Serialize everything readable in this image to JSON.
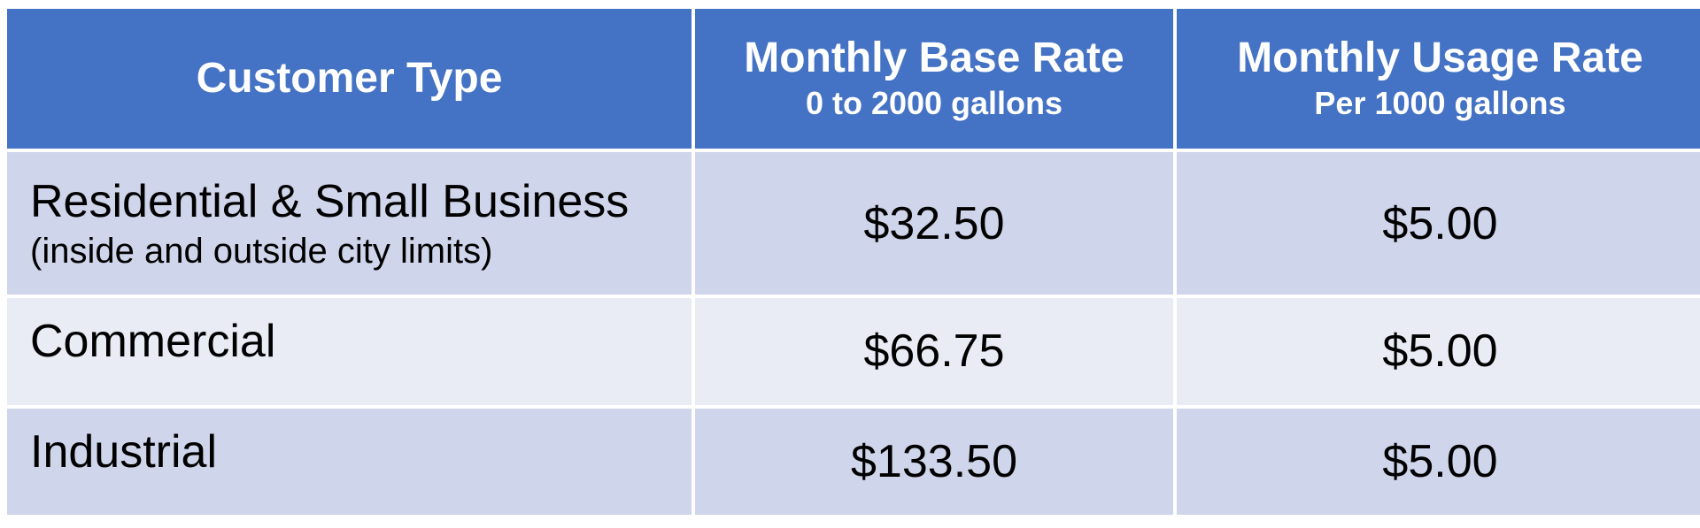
{
  "table": {
    "headers": [
      {
        "title": "Customer Type",
        "subtitle": ""
      },
      {
        "title": "Monthly Base Rate",
        "subtitle": "0 to 2000 gallons"
      },
      {
        "title": "Monthly Usage Rate",
        "subtitle": "Per 1000 gallons"
      }
    ],
    "rows": [
      {
        "type": "Residential & Small Business",
        "note": "(inside and outside city limits)",
        "base_rate": "$32.50",
        "usage_rate": "$5.00"
      },
      {
        "type": "Commercial",
        "note": "",
        "base_rate": "$66.75",
        "usage_rate": "$5.00"
      },
      {
        "type": "Industrial",
        "note": "",
        "base_rate": "$133.50",
        "usage_rate": "$5.00"
      }
    ]
  },
  "colors": {
    "header_bg": "#4472c4",
    "row_dark": "#cfd5ea",
    "row_light": "#e9ebf5"
  }
}
